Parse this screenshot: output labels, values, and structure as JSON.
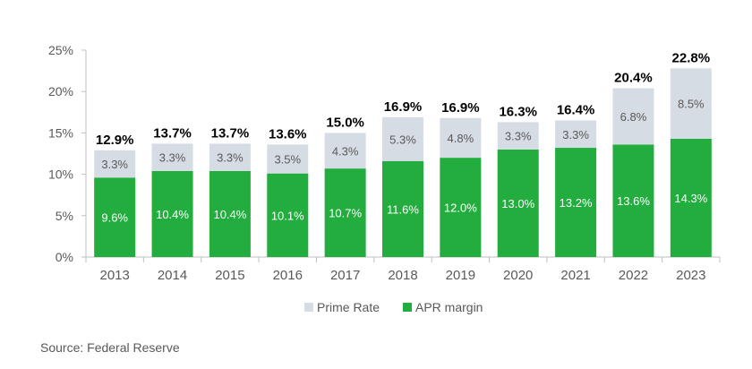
{
  "chart_data": {
    "type": "bar",
    "stacked": true,
    "title": "",
    "xlabel": "",
    "ylabel": "",
    "categories": [
      "2013",
      "2014",
      "2015",
      "2016",
      "2017",
      "2018",
      "2019",
      "2020",
      "2021",
      "2022",
      "2023"
    ],
    "series": [
      {
        "name": "APR margin",
        "color": "#23ad3f",
        "values": [
          9.6,
          10.4,
          10.4,
          10.1,
          10.7,
          11.6,
          12.0,
          13.0,
          13.2,
          13.6,
          14.3
        ],
        "labels": [
          "9.6%",
          "10.4%",
          "10.4%",
          "10.1%",
          "10.7%",
          "11.6%",
          "12.0%",
          "13.0%",
          "13.2%",
          "13.6%",
          "14.3%"
        ]
      },
      {
        "name": "Prime Rate",
        "color": "#d6dce4",
        "values": [
          3.3,
          3.3,
          3.3,
          3.5,
          4.3,
          5.3,
          4.8,
          3.3,
          3.3,
          6.8,
          8.5
        ],
        "labels": [
          "3.3%",
          "3.3%",
          "3.3%",
          "3.5%",
          "4.3%",
          "5.3%",
          "4.8%",
          "3.3%",
          "3.3%",
          "6.8%",
          "8.5%"
        ]
      }
    ],
    "totals": [
      12.9,
      13.7,
      13.7,
      13.6,
      15.0,
      16.9,
      16.9,
      16.3,
      16.4,
      20.4,
      22.8
    ],
    "total_labels": [
      "12.9%",
      "13.7%",
      "13.7%",
      "13.6%",
      "15.0%",
      "16.9%",
      "16.9%",
      "16.3%",
      "16.4%",
      "20.4%",
      "22.8%"
    ],
    "ylim": [
      0,
      25
    ],
    "yticks": [
      0,
      5,
      10,
      15,
      20,
      25
    ],
    "ytick_labels": [
      "0%",
      "5%",
      "10%",
      "15%",
      "20%",
      "25%"
    ],
    "legend": {
      "position": "bottom",
      "entries": [
        {
          "label": "Prime Rate",
          "color": "#d6dce4"
        },
        {
          "label": "APR margin",
          "color": "#23ad3f"
        }
      ]
    },
    "grid": false
  },
  "footer": {
    "source": "Source: Federal Reserve"
  }
}
